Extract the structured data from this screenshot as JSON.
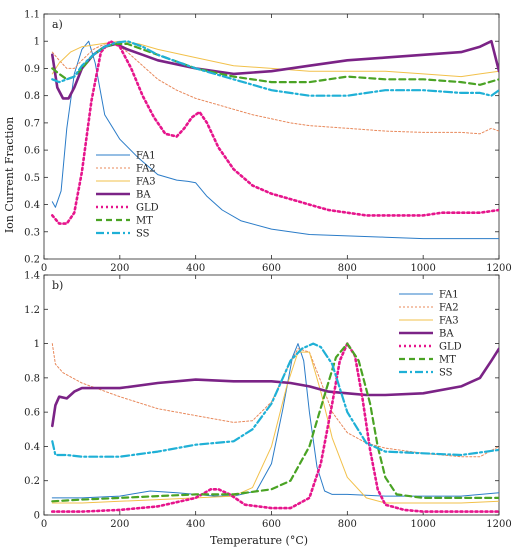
{
  "figure": {
    "ylabel": "Ion Current Fraction",
    "xlabel": "Temperature (°C)"
  },
  "chart_data": [
    {
      "type": "line",
      "panel_label": "a)",
      "xlim": [
        0,
        1200
      ],
      "ylim": [
        0.2,
        1.1
      ],
      "xticks": [
        0,
        200,
        400,
        600,
        800,
        1000,
        1200
      ],
      "yticks": [
        0.2,
        0.3,
        0.4,
        0.5,
        0.6,
        0.7,
        0.8,
        0.9,
        1.0,
        1.1
      ],
      "xtick_labels": [
        "0",
        "200",
        "400",
        "600",
        "800",
        "1000",
        "1200"
      ],
      "ytick_labels": [
        "0.2",
        "0.3",
        "0.4",
        "0.5",
        "0.6",
        "0.7",
        "0.8",
        "0.9",
        "1",
        "1.1"
      ],
      "grid": false,
      "legend_position": "lower-left",
      "series": [
        {
          "name": "FA1",
          "color": "#2b7cc8",
          "dash": "solid",
          "width": 1,
          "x": [
            22,
            30,
            45,
            60,
            80,
            100,
            118,
            135,
            160,
            200,
            250,
            300,
            350,
            380,
            400,
            430,
            470,
            520,
            600,
            700,
            800,
            900,
            1000,
            1100,
            1200
          ],
          "y": [
            0.41,
            0.39,
            0.45,
            0.68,
            0.88,
            0.97,
            1.0,
            0.92,
            0.73,
            0.64,
            0.57,
            0.51,
            0.49,
            0.485,
            0.48,
            0.43,
            0.38,
            0.34,
            0.31,
            0.29,
            0.285,
            0.28,
            0.275,
            0.275,
            0.275
          ]
        },
        {
          "name": "FA2",
          "color": "#e8885a",
          "dash": "2,2",
          "width": 1,
          "x": [
            22,
            40,
            60,
            80,
            100,
            130,
            160,
            190,
            220,
            260,
            300,
            350,
            400,
            450,
            500,
            550,
            600,
            650,
            700,
            800,
            900,
            1000,
            1100,
            1150,
            1180,
            1200
          ],
          "y": [
            0.96,
            0.93,
            0.9,
            0.9,
            0.93,
            0.97,
            0.99,
            0.99,
            0.96,
            0.91,
            0.86,
            0.82,
            0.79,
            0.77,
            0.75,
            0.73,
            0.715,
            0.7,
            0.69,
            0.68,
            0.67,
            0.665,
            0.665,
            0.66,
            0.68,
            0.67
          ]
        },
        {
          "name": "FA3",
          "color": "#f2c14b",
          "dash": "solid",
          "width": 1,
          "x": [
            22,
            40,
            70,
            100,
            150,
            200,
            250,
            300,
            400,
            500,
            600,
            700,
            800,
            900,
            1000,
            1100,
            1150,
            1200
          ],
          "y": [
            0.88,
            0.92,
            0.96,
            0.98,
            0.99,
            1.0,
            0.99,
            0.97,
            0.94,
            0.91,
            0.9,
            0.89,
            0.89,
            0.89,
            0.88,
            0.87,
            0.88,
            0.89
          ]
        },
        {
          "name": "BA",
          "color": "#7b2386",
          "dash": "solid",
          "width": 2.6,
          "x": [
            22,
            35,
            50,
            65,
            80,
            100,
            130,
            160,
            190,
            220,
            260,
            300,
            400,
            500,
            600,
            700,
            800,
            900,
            1000,
            1100,
            1150,
            1180,
            1200
          ],
          "y": [
            0.95,
            0.83,
            0.79,
            0.79,
            0.83,
            0.9,
            0.95,
            0.98,
            0.99,
            0.97,
            0.95,
            0.93,
            0.9,
            0.88,
            0.89,
            0.91,
            0.93,
            0.94,
            0.95,
            0.96,
            0.98,
            1.0,
            0.89
          ]
        },
        {
          "name": "GLD",
          "color": "#e6158c",
          "dash": "2,3",
          "width": 2.6,
          "x": [
            22,
            40,
            60,
            80,
            100,
            125,
            150,
            175,
            200,
            230,
            260,
            290,
            320,
            350,
            370,
            390,
            410,
            430,
            460,
            500,
            550,
            600,
            650,
            700,
            750,
            800,
            850,
            900,
            950,
            1000,
            1050,
            1100,
            1150,
            1200
          ],
          "y": [
            0.36,
            0.33,
            0.33,
            0.37,
            0.52,
            0.78,
            0.96,
            1.0,
            0.98,
            0.9,
            0.8,
            0.72,
            0.66,
            0.65,
            0.68,
            0.72,
            0.74,
            0.7,
            0.61,
            0.53,
            0.47,
            0.44,
            0.42,
            0.4,
            0.38,
            0.37,
            0.36,
            0.36,
            0.36,
            0.36,
            0.37,
            0.37,
            0.37,
            0.38
          ]
        },
        {
          "name": "MT",
          "color": "#4aa324",
          "dash": "6,4",
          "width": 2.2,
          "x": [
            22,
            40,
            60,
            80,
            100,
            130,
            160,
            190,
            220,
            260,
            300,
            400,
            500,
            600,
            700,
            800,
            900,
            1000,
            1100,
            1150,
            1200
          ],
          "y": [
            0.9,
            0.88,
            0.86,
            0.87,
            0.9,
            0.95,
            0.98,
            0.99,
            0.99,
            0.97,
            0.95,
            0.9,
            0.87,
            0.85,
            0.85,
            0.87,
            0.86,
            0.86,
            0.85,
            0.84,
            0.86
          ]
        },
        {
          "name": "SS",
          "color": "#1fb0d6",
          "dash": "8,3,2,3",
          "width": 2.2,
          "x": [
            22,
            40,
            60,
            80,
            100,
            130,
            160,
            190,
            220,
            260,
            300,
            400,
            500,
            600,
            700,
            800,
            900,
            1000,
            1100,
            1150,
            1180,
            1200
          ],
          "y": [
            0.86,
            0.85,
            0.86,
            0.87,
            0.91,
            0.95,
            0.98,
            0.995,
            1.0,
            0.98,
            0.95,
            0.9,
            0.86,
            0.82,
            0.8,
            0.8,
            0.82,
            0.82,
            0.81,
            0.81,
            0.8,
            0.82
          ]
        }
      ]
    },
    {
      "type": "line",
      "panel_label": "b)",
      "xlim": [
        0,
        1200
      ],
      "ylim": [
        0,
        1.4
      ],
      "xticks": [
        0,
        200,
        400,
        600,
        800,
        1000,
        1200
      ],
      "yticks": [
        0,
        0.2,
        0.4,
        0.6,
        0.8,
        1.0,
        1.2,
        1.4
      ],
      "xtick_labels": [
        "0",
        "200",
        "400",
        "600",
        "800",
        "1000",
        "1200"
      ],
      "ytick_labels": [
        "0",
        "0.2",
        "0.4",
        "0.6",
        "0.8",
        "1",
        "1.2",
        "1.4"
      ],
      "grid": false,
      "legend_position": "top-right",
      "series": [
        {
          "name": "FA1",
          "color": "#2b7cc8",
          "dash": "solid",
          "width": 1,
          "x": [
            22,
            100,
            200,
            280,
            350,
            400,
            450,
            500,
            560,
            600,
            630,
            655,
            670,
            685,
            700,
            720,
            740,
            760,
            800,
            900,
            1000,
            1100,
            1200
          ],
          "y": [
            0.1,
            0.1,
            0.11,
            0.14,
            0.13,
            0.12,
            0.11,
            0.11,
            0.14,
            0.3,
            0.62,
            0.92,
            1.0,
            0.9,
            0.6,
            0.28,
            0.14,
            0.12,
            0.12,
            0.11,
            0.11,
            0.11,
            0.13
          ]
        },
        {
          "name": "FA2",
          "color": "#e8885a",
          "dash": "2,2",
          "width": 1,
          "x": [
            22,
            30,
            50,
            100,
            200,
            300,
            400,
            500,
            550,
            600,
            640,
            670,
            700,
            730,
            760,
            800,
            850,
            900,
            1000,
            1100,
            1150,
            1200
          ],
          "y": [
            1.0,
            0.88,
            0.83,
            0.77,
            0.69,
            0.62,
            0.58,
            0.54,
            0.55,
            0.66,
            0.85,
            0.97,
            0.95,
            0.78,
            0.6,
            0.48,
            0.42,
            0.39,
            0.36,
            0.34,
            0.34,
            0.4
          ]
        },
        {
          "name": "FA3",
          "color": "#f2c14b",
          "dash": "solid",
          "width": 1,
          "x": [
            22,
            100,
            200,
            300,
            400,
            500,
            550,
            600,
            640,
            670,
            700,
            730,
            760,
            800,
            850,
            900,
            1000,
            1100,
            1200
          ],
          "y": [
            0.07,
            0.07,
            0.08,
            0.09,
            0.1,
            0.11,
            0.16,
            0.4,
            0.75,
            0.95,
            0.95,
            0.72,
            0.45,
            0.22,
            0.1,
            0.07,
            0.07,
            0.07,
            0.08
          ]
        },
        {
          "name": "BA",
          "color": "#7b2386",
          "dash": "solid",
          "width": 2.6,
          "x": [
            22,
            30,
            40,
            60,
            80,
            100,
            150,
            200,
            300,
            400,
            500,
            600,
            650,
            700,
            750,
            800,
            850,
            900,
            1000,
            1100,
            1150,
            1180,
            1200
          ],
          "y": [
            0.52,
            0.64,
            0.69,
            0.68,
            0.72,
            0.74,
            0.74,
            0.74,
            0.77,
            0.79,
            0.78,
            0.78,
            0.77,
            0.75,
            0.72,
            0.71,
            0.7,
            0.7,
            0.71,
            0.75,
            0.8,
            0.9,
            0.97
          ]
        },
        {
          "name": "GLD",
          "color": "#e6158c",
          "dash": "2,3",
          "width": 2.6,
          "x": [
            22,
            100,
            200,
            300,
            400,
            440,
            460,
            490,
            530,
            600,
            650,
            700,
            730,
            760,
            780,
            800,
            820,
            840,
            860,
            880,
            900,
            950,
            1000,
            1100,
            1200
          ],
          "y": [
            0.02,
            0.02,
            0.03,
            0.05,
            0.1,
            0.15,
            0.15,
            0.12,
            0.06,
            0.04,
            0.04,
            0.1,
            0.3,
            0.65,
            0.9,
            1.0,
            0.93,
            0.68,
            0.38,
            0.15,
            0.06,
            0.03,
            0.02,
            0.02,
            0.02
          ]
        },
        {
          "name": "MT",
          "color": "#4aa324",
          "dash": "6,4",
          "width": 2.2,
          "x": [
            22,
            100,
            200,
            300,
            400,
            500,
            600,
            650,
            700,
            740,
            770,
            800,
            830,
            860,
            880,
            900,
            930,
            1000,
            1100,
            1200
          ],
          "y": [
            0.08,
            0.09,
            0.1,
            0.11,
            0.12,
            0.12,
            0.15,
            0.2,
            0.4,
            0.7,
            0.92,
            1.0,
            0.9,
            0.65,
            0.4,
            0.22,
            0.12,
            0.1,
            0.1,
            0.1
          ]
        },
        {
          "name": "SS",
          "color": "#1fb0d6",
          "dash": "8,3,2,3",
          "width": 2.2,
          "x": [
            22,
            30,
            60,
            100,
            200,
            300,
            400,
            500,
            550,
            600,
            650,
            680,
            710,
            730,
            760,
            800,
            850,
            900,
            1000,
            1100,
            1200
          ],
          "y": [
            0.43,
            0.35,
            0.35,
            0.34,
            0.34,
            0.37,
            0.41,
            0.43,
            0.5,
            0.65,
            0.9,
            0.97,
            1.0,
            0.98,
            0.88,
            0.6,
            0.42,
            0.37,
            0.36,
            0.35,
            0.38
          ]
        }
      ]
    }
  ]
}
